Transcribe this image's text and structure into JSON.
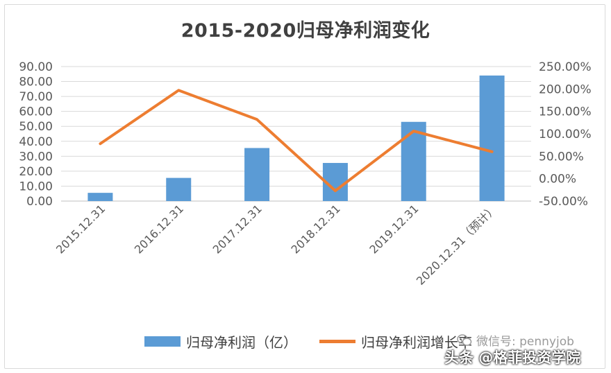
{
  "chart_data": {
    "type": "bar+line",
    "title": "2015-2020归母净利润变化",
    "categories": [
      "2015.12.31",
      "2016.12.31",
      "2017.12.31",
      "2018.12.31",
      "2019.12.31",
      "2020.12.31（预计）"
    ],
    "series": [
      {
        "name": "归母净利润（亿）",
        "type": "bar",
        "axis": "left",
        "color": "#5b9bd5",
        "values": [
          5.5,
          15.5,
          35.5,
          25.5,
          53.0,
          84.0
        ]
      },
      {
        "name": "归母净利润增长率",
        "type": "line",
        "axis": "right",
        "color": "#ed7d31",
        "values": [
          78,
          197,
          132,
          -27,
          106,
          60
        ]
      }
    ],
    "y_left": {
      "ylim": [
        0,
        90
      ],
      "ticks": [
        "0.00",
        "10.00",
        "20.00",
        "30.00",
        "40.00",
        "50.00",
        "60.00",
        "70.00",
        "80.00",
        "90.00"
      ]
    },
    "y_right": {
      "ylim": [
        -50,
        250
      ],
      "ticks": [
        "-50.00%",
        "0.00%",
        "50.00%",
        "100.00%",
        "150.00%",
        "200.00%",
        "250.00%"
      ]
    },
    "grid": true,
    "legend": "bottom"
  },
  "legend_labels": {
    "bar": "归母净利润（亿）",
    "line": "归母净利润增长率"
  },
  "watermark": {
    "text": "微信号: pennyjob",
    "icon": "wechat-icon"
  },
  "source_tag": "头条 @格菲投资学院"
}
